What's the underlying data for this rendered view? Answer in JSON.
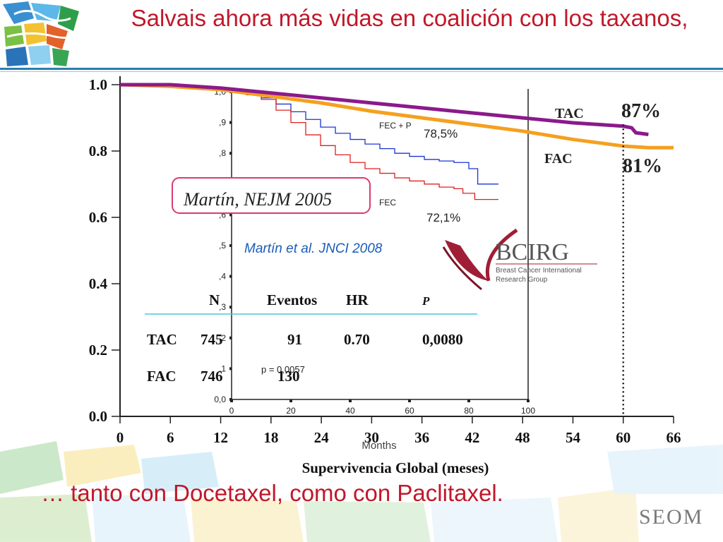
{
  "slide": {
    "title": "Salvais ahora más vidas en coalición con los taxanos,",
    "footer": "… tanto con Docetaxel, como con Paclitaxel.",
    "logo_text": "SEOM"
  },
  "chart_data": [
    {
      "type": "line",
      "xlabel": "Supervivencia Global (meses)",
      "ylabel": "",
      "xlim": [
        0,
        66
      ],
      "ylim": [
        0.0,
        1.0
      ],
      "x_ticks": [
        "0",
        "6",
        "12",
        "18",
        "24",
        "30",
        "36",
        "42",
        "48",
        "54",
        "60",
        "66"
      ],
      "y_ticks": [
        "0.0",
        "0.2",
        "0.4",
        "0.6",
        "0.8",
        "1.0"
      ],
      "series": [
        {
          "name": "TAC",
          "color": "#8b1a8b",
          "points": [
            [
              0,
              1.0
            ],
            [
              6,
              1.0
            ],
            [
              12,
              0.99
            ],
            [
              18,
              0.975
            ],
            [
              24,
              0.96
            ],
            [
              30,
              0.945
            ],
            [
              36,
              0.93
            ],
            [
              42,
              0.915
            ],
            [
              48,
              0.9
            ],
            [
              54,
              0.885
            ],
            [
              60,
              0.875
            ],
            [
              61,
              0.87
            ],
            [
              61.5,
              0.855
            ],
            [
              63,
              0.85
            ]
          ]
        },
        {
          "name": "FAC",
          "color": "#f5a020",
          "points": [
            [
              0,
              1.0
            ],
            [
              6,
              0.995
            ],
            [
              12,
              0.985
            ],
            [
              18,
              0.965
            ],
            [
              24,
              0.945
            ],
            [
              30,
              0.92
            ],
            [
              36,
              0.9
            ],
            [
              42,
              0.88
            ],
            [
              48,
              0.86
            ],
            [
              54,
              0.835
            ],
            [
              60,
              0.815
            ],
            [
              63,
              0.81
            ],
            [
              66,
              0.81
            ]
          ]
        }
      ],
      "annotations": [
        {
          "text": "TAC",
          "x": 54,
          "y": 0.92
        },
        {
          "text": "FAC",
          "x": 53,
          "y": 0.79
        },
        {
          "text": "87%",
          "x": 62.5,
          "y": 0.92
        },
        {
          "text": "81%",
          "x": 62.5,
          "y": 0.75
        }
      ],
      "reference_line": {
        "x": 60
      },
      "table": {
        "headers": [
          "N",
          "Eventos",
          "HR",
          "P"
        ],
        "rows": [
          {
            "arm": "TAC",
            "n": "745",
            "eventos": "91",
            "hr": "0.70",
            "p": "0,0080"
          },
          {
            "arm": "FAC",
            "n": "746",
            "eventos": "130",
            "hr": "",
            "p": ""
          }
        ]
      },
      "citation": "Martín, NEJM 2005"
    },
    {
      "type": "line",
      "xlabel": "Months",
      "xlim": [
        0,
        100
      ],
      "ylim": [
        0.0,
        1.0
      ],
      "x_ticks": [
        "0",
        "20",
        "40",
        "60",
        "80",
        "100"
      ],
      "y_ticks": [
        "0,0",
        ",1",
        ",2",
        ",3",
        ",4",
        ",5",
        ",6",
        ",7",
        ",8",
        ",9",
        "1,0"
      ],
      "series": [
        {
          "name": "FEC + P",
          "color": "#1a36d0",
          "points": [
            [
              0,
              1.0
            ],
            [
              5,
              0.995
            ],
            [
              10,
              0.98
            ],
            [
              15,
              0.96
            ],
            [
              20,
              0.935
            ],
            [
              25,
              0.91
            ],
            [
              30,
              0.885
            ],
            [
              35,
              0.865
            ],
            [
              40,
              0.845
            ],
            [
              45,
              0.83
            ],
            [
              50,
              0.815
            ],
            [
              55,
              0.8
            ],
            [
              60,
              0.79
            ],
            [
              65,
              0.78
            ],
            [
              70,
              0.775
            ],
            [
              75,
              0.77
            ],
            [
              80,
              0.75
            ],
            [
              83,
              0.7
            ],
            [
              90,
              0.7
            ]
          ]
        },
        {
          "name": "FEC",
          "color": "#e02020",
          "points": [
            [
              0,
              1.0
            ],
            [
              5,
              0.99
            ],
            [
              10,
              0.975
            ],
            [
              15,
              0.94
            ],
            [
              20,
              0.9
            ],
            [
              25,
              0.86
            ],
            [
              30,
              0.825
            ],
            [
              35,
              0.795
            ],
            [
              40,
              0.77
            ],
            [
              45,
              0.75
            ],
            [
              50,
              0.735
            ],
            [
              55,
              0.72
            ],
            [
              60,
              0.71
            ],
            [
              65,
              0.7
            ],
            [
              70,
              0.69
            ],
            [
              75,
              0.685
            ],
            [
              78,
              0.67
            ],
            [
              82,
              0.65
            ],
            [
              90,
              0.65
            ]
          ]
        }
      ],
      "annotations": [
        {
          "text": "78,5%",
          "x": 65,
          "y": 0.9
        },
        {
          "text": "72,1%",
          "x": 67,
          "y": 0.57
        },
        {
          "text": "p = 0,0057",
          "x": 10,
          "y": 0.08
        }
      ],
      "citation": "Martín et al. JNCI 2008",
      "logo": {
        "title": "BCIRG",
        "subtitle_1": "Breast Cancer International",
        "subtitle_2": "Research Group"
      }
    }
  ]
}
